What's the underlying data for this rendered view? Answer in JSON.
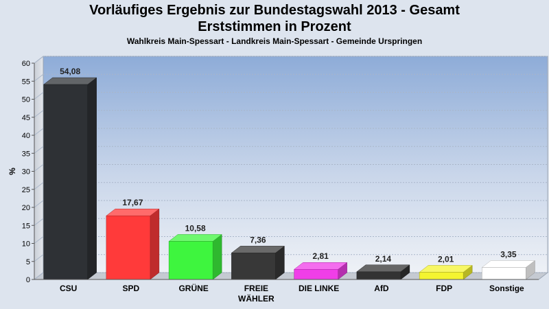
{
  "header": {
    "title_line1": "Vorläufiges Ergebnis zur Bundestagswahl 2013 - Gesamt",
    "title_line2": "Erststimmen in Prozent",
    "subtitle": "Wahlkreis Main-Spessart - Landkreis Main-Spessart - Gemeinde Urspringen"
  },
  "chart_data": {
    "type": "bar",
    "title": "Vorläufiges Ergebnis zur Bundestagswahl 2013 - Gesamt / Erststimmen in Prozent",
    "subtitle": "Wahlkreis Main-Spessart - Landkreis Main-Spessart - Gemeinde Urspringen",
    "xlabel": "",
    "ylabel": "%",
    "ylim": [
      0,
      60
    ],
    "yticks": [
      "0",
      "5",
      "10",
      "15",
      "20",
      "25",
      "30",
      "35",
      "40",
      "45",
      "50",
      "55",
      "60"
    ],
    "grid": true,
    "legend": "none",
    "categories": [
      {
        "line1": "CSU",
        "line2": ""
      },
      {
        "line1": "SPD",
        "line2": ""
      },
      {
        "line1": "GRÜNE",
        "line2": ""
      },
      {
        "line1": "FREIE",
        "line2": "WÄHLER"
      },
      {
        "line1": "DIE LINKE",
        "line2": ""
      },
      {
        "line1": "AfD",
        "line2": ""
      },
      {
        "line1": "FDP",
        "line2": ""
      },
      {
        "line1": "Sonstige",
        "line2": ""
      }
    ],
    "values": [
      54.08,
      17.67,
      10.58,
      7.36,
      2.81,
      2.14,
      2.01,
      3.35
    ],
    "value_labels": [
      "54,08",
      "17,67",
      "10,58",
      "7,36",
      "2,81",
      "2,14",
      "2,01",
      "3,35"
    ],
    "colors": [
      "#2e3135",
      "#ff3a3a",
      "#3ef53e",
      "#383838",
      "#f03ee8",
      "#333333",
      "#f4f430",
      "#ffffff"
    ]
  }
}
